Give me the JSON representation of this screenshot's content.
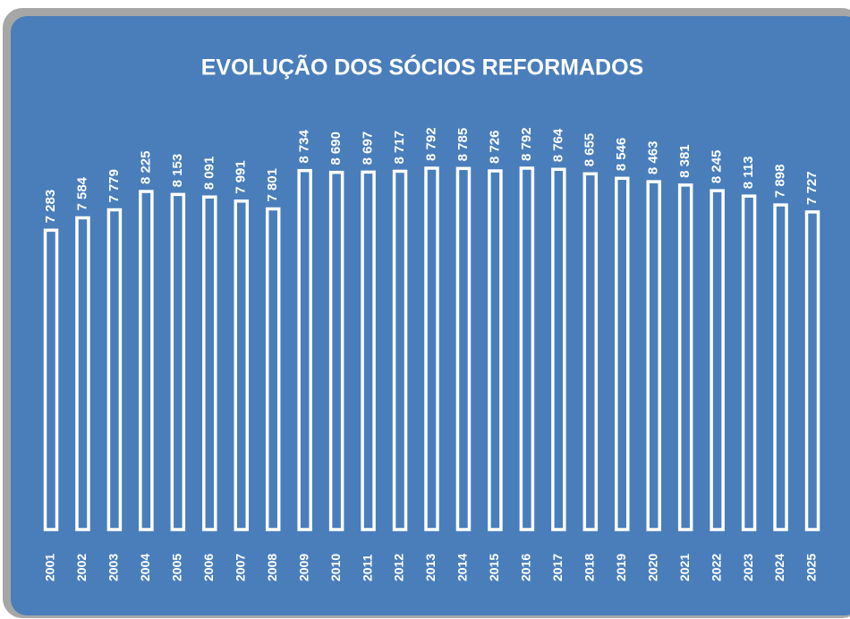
{
  "chart_data": {
    "type": "bar",
    "title": "EVOLUÇÃO DOS SÓCIOS REFORMADOS",
    "categories": [
      "2001",
      "2002",
      "2003",
      "2004",
      "2005",
      "2006",
      "2007",
      "2008",
      "2009",
      "2010",
      "2011",
      "2012",
      "2013",
      "2014",
      "2015",
      "2016",
      "2017",
      "2018",
      "2019",
      "2020",
      "2021",
      "2022",
      "2023",
      "2024",
      "2025"
    ],
    "values": [
      7283,
      7584,
      7779,
      8225,
      8153,
      8091,
      7991,
      7801,
      8734,
      8690,
      8697,
      8717,
      8792,
      8785,
      8726,
      8792,
      8764,
      8655,
      8546,
      8463,
      8381,
      8245,
      8113,
      7898,
      7727
    ],
    "value_labels": [
      "7 283",
      "7 584",
      "7 779",
      "8 225",
      "8 153",
      "8 091",
      "7 991",
      "7 801",
      "8 734",
      "8 690",
      "8 697",
      "8 717",
      "8 792",
      "8 785",
      "8 726",
      "8 792",
      "8 764",
      "8 655",
      "8 546",
      "8 463",
      "8 381",
      "8 245",
      "8 113",
      "7 898",
      "7 727"
    ],
    "color": "#ffffff",
    "background": "#4a7ebb"
  }
}
